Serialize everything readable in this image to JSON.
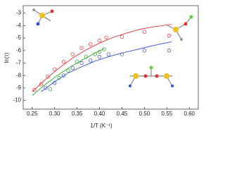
{
  "chart_data": {
    "type": "scatter",
    "xlabel": "1/T (K⁻¹)",
    "ylabel": "ln(τ)",
    "xlim": [
      0.23,
      0.62
    ],
    "ylim": [
      -10.7,
      -2.4
    ],
    "xticks": [
      {
        "value": 0.25,
        "label": "0.25"
      },
      {
        "value": 0.3,
        "label": "0.30"
      },
      {
        "value": 0.35,
        "label": "0.35"
      },
      {
        "value": 0.4,
        "label": "0.40"
      },
      {
        "value": 0.45,
        "label": "0.45"
      },
      {
        "value": 0.5,
        "label": "0.50"
      },
      {
        "value": 0.55,
        "label": "0.55"
      },
      {
        "value": 0.6,
        "label": "0.60"
      }
    ],
    "yticks": [
      -10,
      -9,
      -8,
      -7,
      -6,
      -5,
      -4,
      -3
    ],
    "series": [
      {
        "color": "#e8434b",
        "x": [
          0.255,
          0.27,
          0.285,
          0.3,
          0.32,
          0.34,
          0.36,
          0.38,
          0.4,
          0.415,
          0.45,
          0.5,
          0.555
        ],
        "values": [
          -9.15,
          -8.7,
          -8.1,
          -7.5,
          -6.9,
          -6.3,
          -5.8,
          -5.5,
          -5.2,
          -4.95,
          -4.9,
          -4.5,
          -4.8
        ],
        "fit_x": [
          0.25,
          0.28,
          0.31,
          0.34,
          0.37,
          0.4,
          0.43,
          0.46,
          0.49,
          0.52,
          0.56
        ],
        "fit_values": [
          -9.3,
          -8.3,
          -7.4,
          -6.6,
          -5.95,
          -5.4,
          -4.95,
          -4.6,
          -4.3,
          -4.1,
          -3.9
        ]
      },
      {
        "color": "#3fae3f",
        "x": [
          0.29,
          0.31,
          0.33,
          0.35,
          0.37,
          0.39,
          0.4,
          0.41
        ],
        "values": [
          -9.1,
          -8.2,
          -7.6,
          -6.9,
          -6.5,
          -6.3,
          -6.1,
          -5.9
        ],
        "fit_x": [
          0.25,
          0.28,
          0.31,
          0.34,
          0.37,
          0.39,
          0.41
        ],
        "fit_values": [
          -9.6,
          -8.7,
          -7.9,
          -7.2,
          -6.6,
          -6.2,
          -5.85
        ]
      },
      {
        "color": "#3f5fc4",
        "x": [
          0.28,
          0.3,
          0.32,
          0.34,
          0.36,
          0.38,
          0.4,
          0.42,
          0.45,
          0.5,
          0.555
        ],
        "values": [
          -9.0,
          -8.6,
          -8.0,
          -7.4,
          -7.0,
          -6.8,
          -6.5,
          -6.3,
          -6.3,
          -6.0,
          -6.0
        ],
        "fit_x": [
          0.27,
          0.3,
          0.33,
          0.36,
          0.39,
          0.42,
          0.45,
          0.48,
          0.52,
          0.56
        ],
        "fit_values": [
          -9.3,
          -8.5,
          -7.8,
          -7.3,
          -6.85,
          -6.5,
          -6.2,
          -5.95,
          -5.6,
          -5.3
        ]
      }
    ]
  }
}
